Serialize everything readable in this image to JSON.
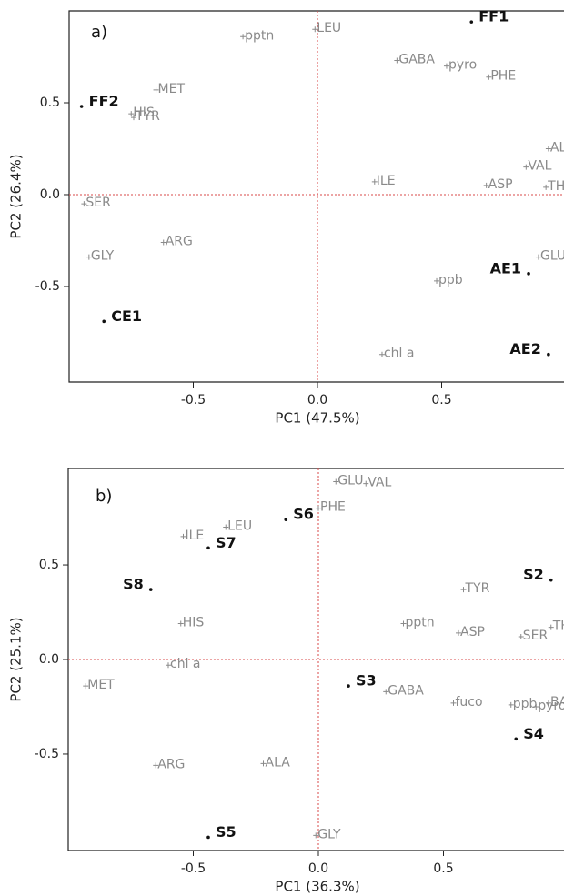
{
  "chart_data": [
    {
      "type": "scatter",
      "title": "a)",
      "xlabel": "PC1 (47.5%)",
      "ylabel": "PC2 (26.4%)",
      "xlim": [
        -1,
        1
      ],
      "ylim": [
        -1.02,
        1.0
      ],
      "xticks": [
        -0.5,
        {
          "value": 0,
          "label": "0.0"
        },
        0.5
      ],
      "yticks": [
        -0.5,
        {
          "value": 0,
          "label": "0.0"
        },
        0.5
      ],
      "zero_lines": true,
      "zero_line_color": "#d84a4a",
      "variables": {
        "color": "#8a8a8a",
        "labels": [
          "pptn",
          "LEU",
          "GABA",
          "pyro",
          "PHE",
          "MET",
          "HIS",
          "TYR",
          "ALA",
          "VAL",
          "THR",
          "ILE",
          "ASP",
          "SER",
          "ARG",
          "GLY",
          "GLU",
          "ppb",
          "chl a"
        ],
        "x": [
          -0.3,
          -0.01,
          0.32,
          0.52,
          0.69,
          -0.65,
          -0.75,
          -0.74,
          0.93,
          0.84,
          0.92,
          0.23,
          0.68,
          -0.94,
          -0.62,
          -0.92,
          0.89,
          0.48,
          0.26
        ],
        "y": [
          0.86,
          0.9,
          0.73,
          0.7,
          0.64,
          0.57,
          0.44,
          0.42,
          0.25,
          0.15,
          0.04,
          0.07,
          0.05,
          -0.05,
          -0.26,
          -0.34,
          -0.34,
          -0.47,
          -0.87
        ]
      },
      "samples": {
        "color": "#111111",
        "labels": [
          "FF1",
          "FF2",
          "CE1",
          "AE1",
          "AE2"
        ],
        "x": [
          0.62,
          -0.95,
          -0.86,
          0.85,
          0.93
        ],
        "y": [
          0.94,
          0.48,
          -0.69,
          -0.43,
          -0.87
        ]
      }
    },
    {
      "type": "scatter",
      "title": "b)",
      "xlabel": "PC1 (36.3%)",
      "ylabel": "PC2 (25.1%)",
      "xlim": [
        -1,
        1
      ],
      "ylim": [
        -1.01,
        1.01
      ],
      "xticks": [
        -0.5,
        {
          "value": 0,
          "label": "0.0"
        },
        0.5
      ],
      "yticks": [
        -0.5,
        {
          "value": 0,
          "label": "0.0"
        },
        0.5
      ],
      "zero_lines": true,
      "zero_line_color": "#d84a4a",
      "variables": {
        "color": "#8a8a8a",
        "labels": [
          "GLU",
          "VAL",
          "PHE",
          "LEU",
          "ILE",
          "TYR",
          "HIS",
          "pptn",
          "ASP",
          "SER",
          "THR",
          "chl a",
          "MET",
          "GABA",
          "fuco",
          "BALA",
          "pyro",
          "ppb",
          "ARG",
          "ALA",
          "GLY"
        ],
        "x": [
          0.07,
          0.19,
          0.0,
          -0.37,
          -0.54,
          0.58,
          -0.55,
          0.34,
          0.56,
          0.81,
          0.93,
          -0.6,
          -0.93,
          0.27,
          0.54,
          0.92,
          0.87,
          0.77,
          -0.65,
          -0.22,
          -0.01
        ],
        "y": [
          0.94,
          0.93,
          0.8,
          0.7,
          0.65,
          0.37,
          0.19,
          0.19,
          0.14,
          0.12,
          0.17,
          -0.03,
          -0.14,
          -0.17,
          -0.23,
          -0.23,
          -0.25,
          -0.24,
          -0.56,
          -0.55,
          -0.93
        ]
      },
      "samples": {
        "color": "#111111",
        "labels": [
          "S6",
          "S7",
          "S8",
          "S2",
          "S3",
          "S4",
          "S5"
        ],
        "x": [
          -0.13,
          -0.44,
          -0.67,
          0.93,
          0.12,
          0.79,
          -0.44
        ],
        "y": [
          0.74,
          0.59,
          0.37,
          0.42,
          -0.14,
          -0.42,
          -0.94
        ]
      }
    }
  ]
}
